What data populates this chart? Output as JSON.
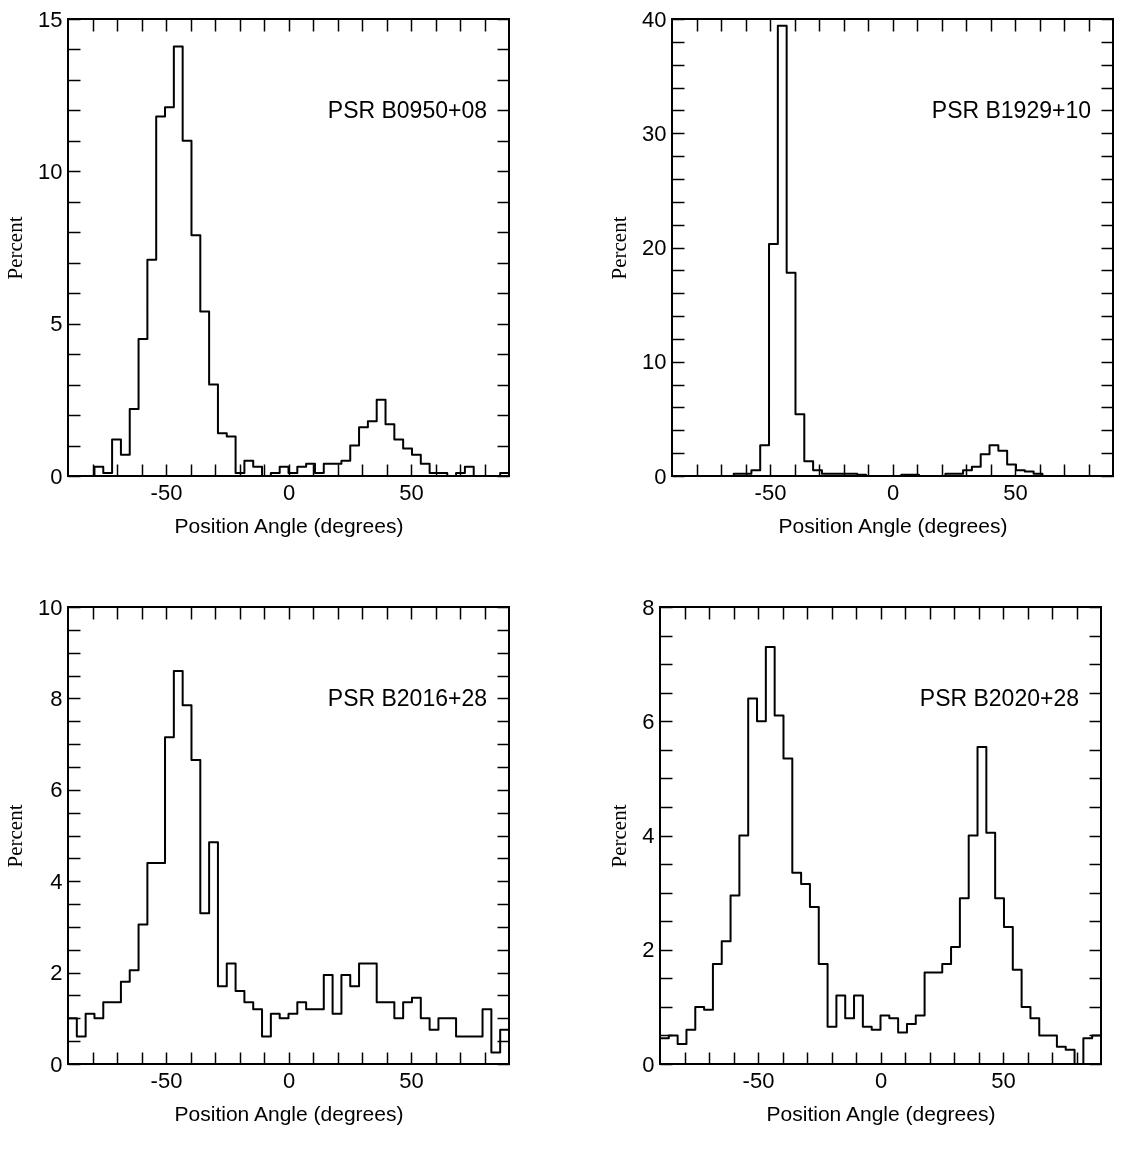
{
  "chart_data": [
    {
      "type": "histogram",
      "xlabel": "Position Angle (degrees)",
      "ylabel": "Percent",
      "annotations": [
        "PSR B0950+08"
      ],
      "color": "#000000",
      "bins": [
        -90,
        -86.4,
        -82.8,
        -79.2,
        -75.6,
        -72,
        -68.4,
        -64.8,
        -61.2,
        -57.6,
        -54,
        -50.4,
        -46.8,
        -43.2,
        -39.6,
        -36,
        -32.4,
        -28.8,
        -25.2,
        -21.6,
        -18,
        -14.4,
        -10.8,
        -7.2,
        -3.6,
        0,
        3.6,
        7.2,
        10.8,
        14.4,
        18,
        21.6,
        25.2,
        28.8,
        32.4,
        36,
        39.6,
        43.2,
        46.8,
        50.4,
        54,
        57.6,
        61.2,
        64.8,
        68.4,
        72,
        75.6,
        79.2,
        82.8,
        86.4,
        90
      ],
      "values": [
        0,
        0,
        0,
        0.3,
        0.1,
        1.2,
        0.7,
        2.2,
        4.5,
        7.1,
        11.8,
        12.1,
        14.1,
        11.0,
        7.9,
        5.4,
        3.0,
        1.4,
        1.3,
        0.1,
        0.5,
        0.3,
        0,
        0.1,
        0.3,
        0.1,
        0.3,
        0.4,
        0.1,
        0.4,
        0.4,
        0.5,
        1.0,
        1.6,
        1.8,
        2.5,
        1.7,
        1.2,
        0.9,
        0.7,
        0.4,
        0.1,
        0.1,
        0,
        0.1,
        0.3,
        0,
        0,
        0,
        0.1
      ],
      "xlim": [
        -90,
        90
      ],
      "xticks": [
        {
          "value": -80,
          "label": null
        },
        {
          "value": -70,
          "label": null
        },
        {
          "value": -60,
          "label": null
        },
        -50,
        {
          "value": -40,
          "label": null
        },
        {
          "value": -30,
          "label": null
        },
        {
          "value": -20,
          "label": null
        },
        {
          "value": -10,
          "label": null
        },
        0,
        {
          "value": 10,
          "label": null
        },
        {
          "value": 20,
          "label": null
        },
        {
          "value": 30,
          "label": null
        },
        {
          "value": 40,
          "label": null
        },
        50,
        {
          "value": 60,
          "label": null
        },
        {
          "value": 70,
          "label": null
        },
        {
          "value": 80,
          "label": null
        }
      ],
      "ylim": [
        0,
        15
      ],
      "yticks": [
        0,
        {
          "value": 1,
          "label": null
        },
        {
          "value": 2,
          "label": null
        },
        {
          "value": 3,
          "label": null
        },
        {
          "value": 4,
          "label": null
        },
        5,
        {
          "value": 6,
          "label": null
        },
        {
          "value": 7,
          "label": null
        },
        {
          "value": 8,
          "label": null
        },
        {
          "value": 9,
          "label": null
        },
        10,
        {
          "value": 11,
          "label": null
        },
        {
          "value": 12,
          "label": null
        },
        {
          "value": 13,
          "label": null
        },
        {
          "value": 14,
          "label": null
        },
        15
      ]
    },
    {
      "type": "histogram",
      "xlabel": "Position Angle (degrees)",
      "ylabel": "Percent",
      "annotations": [
        "PSR B1929+10"
      ],
      "color": "#000000",
      "bins": [
        -90,
        -86.4,
        -82.8,
        -79.2,
        -75.6,
        -72,
        -68.4,
        -64.8,
        -61.2,
        -57.6,
        -54,
        -50.4,
        -46.8,
        -43.2,
        -39.6,
        -36,
        -32.4,
        -28.8,
        -25.2,
        -21.6,
        -18,
        -14.4,
        -10.8,
        -7.2,
        -3.6,
        0,
        3.6,
        7.2,
        10.8,
        14.4,
        18,
        21.6,
        25.2,
        28.8,
        32.4,
        36,
        39.6,
        43.2,
        46.8,
        50.4,
        54,
        57.6,
        61.2,
        64.8,
        68.4,
        72,
        75.6,
        79.2,
        82.8,
        86.4,
        90
      ],
      "values": [
        0,
        0,
        0,
        0,
        0,
        0,
        0,
        0.2,
        0.2,
        0.5,
        2.7,
        20.3,
        39.4,
        17.8,
        5.4,
        1.3,
        0.5,
        0.2,
        0.2,
        0.2,
        0.2,
        0.1,
        0,
        0,
        0,
        0,
        0.1,
        0.1,
        0,
        0,
        0,
        0.2,
        0.2,
        0.5,
        0.8,
        1.9,
        2.7,
        2.2,
        1.0,
        0.5,
        0.4,
        0.2,
        0,
        0,
        0,
        0,
        0,
        0,
        0,
        0
      ],
      "xlim": [
        -90,
        90
      ],
      "xticks": [
        {
          "value": -80,
          "label": null
        },
        {
          "value": -70,
          "label": null
        },
        {
          "value": -60,
          "label": null
        },
        -50,
        {
          "value": -40,
          "label": null
        },
        {
          "value": -30,
          "label": null
        },
        {
          "value": -20,
          "label": null
        },
        {
          "value": -10,
          "label": null
        },
        0,
        {
          "value": 10,
          "label": null
        },
        {
          "value": 20,
          "label": null
        },
        {
          "value": 30,
          "label": null
        },
        {
          "value": 40,
          "label": null
        },
        50,
        {
          "value": 60,
          "label": null
        },
        {
          "value": 70,
          "label": null
        },
        {
          "value": 80,
          "label": null
        }
      ],
      "ylim": [
        0,
        40
      ],
      "yticks": [
        0,
        {
          "value": 2,
          "label": null
        },
        {
          "value": 4,
          "label": null
        },
        {
          "value": 6,
          "label": null
        },
        {
          "value": 8,
          "label": null
        },
        10,
        {
          "value": 12,
          "label": null
        },
        {
          "value": 14,
          "label": null
        },
        {
          "value": 16,
          "label": null
        },
        {
          "value": 18,
          "label": null
        },
        20,
        {
          "value": 22,
          "label": null
        },
        {
          "value": 24,
          "label": null
        },
        {
          "value": 26,
          "label": null
        },
        {
          "value": 28,
          "label": null
        },
        30,
        {
          "value": 32,
          "label": null
        },
        {
          "value": 34,
          "label": null
        },
        {
          "value": 36,
          "label": null
        },
        {
          "value": 38,
          "label": null
        },
        40
      ]
    },
    {
      "type": "histogram",
      "xlabel": "Position Angle (degrees)",
      "ylabel": "Percent",
      "annotations": [
        "PSR B2016+28"
      ],
      "color": "#000000",
      "bins": [
        -90,
        -86.4,
        -82.8,
        -79.2,
        -75.6,
        -72,
        -68.4,
        -64.8,
        -61.2,
        -57.6,
        -54,
        -50.4,
        -46.8,
        -43.2,
        -39.6,
        -36,
        -32.4,
        -28.8,
        -25.2,
        -21.6,
        -18,
        -14.4,
        -10.8,
        -7.2,
        -3.6,
        0,
        3.6,
        7.2,
        10.8,
        14.4,
        18,
        21.6,
        25.2,
        28.8,
        32.4,
        36,
        39.6,
        43.2,
        46.8,
        50.4,
        54,
        57.6,
        61.2,
        64.8,
        68.4,
        72,
        75.6,
        79.2,
        82.8,
        86.4,
        90
      ],
      "values": [
        1.0,
        0.6,
        1.1,
        1.0,
        1.35,
        1.35,
        1.8,
        2.05,
        3.05,
        4.4,
        4.4,
        7.15,
        8.6,
        7.85,
        6.65,
        3.3,
        4.85,
        1.7,
        2.2,
        1.6,
        1.35,
        1.2,
        0.6,
        1.1,
        1.0,
        1.1,
        1.35,
        1.2,
        1.2,
        1.95,
        1.1,
        1.95,
        1.7,
        2.2,
        2.2,
        1.35,
        1.35,
        1.0,
        1.35,
        1.45,
        1.0,
        0.75,
        1.0,
        1.0,
        0.6,
        0.6,
        0.6,
        1.2,
        0.25,
        0.75
      ],
      "xlim": [
        -90,
        90
      ],
      "xticks": [
        {
          "value": -80,
          "label": null
        },
        {
          "value": -70,
          "label": null
        },
        {
          "value": -60,
          "label": null
        },
        -50,
        {
          "value": -40,
          "label": null
        },
        {
          "value": -30,
          "label": null
        },
        {
          "value": -20,
          "label": null
        },
        {
          "value": -10,
          "label": null
        },
        0,
        {
          "value": 10,
          "label": null
        },
        {
          "value": 20,
          "label": null
        },
        {
          "value": 30,
          "label": null
        },
        {
          "value": 40,
          "label": null
        },
        50,
        {
          "value": 60,
          "label": null
        },
        {
          "value": 70,
          "label": null
        },
        {
          "value": 80,
          "label": null
        }
      ],
      "ylim": [
        0,
        10
      ],
      "yticks": [
        0,
        {
          "value": 0.5,
          "label": null
        },
        {
          "value": 1,
          "label": null
        },
        {
          "value": 1.5,
          "label": null
        },
        2,
        {
          "value": 2.5,
          "label": null
        },
        {
          "value": 3,
          "label": null
        },
        {
          "value": 3.5,
          "label": null
        },
        4,
        {
          "value": 4.5,
          "label": null
        },
        {
          "value": 5,
          "label": null
        },
        {
          "value": 5.5,
          "label": null
        },
        6,
        {
          "value": 6.5,
          "label": null
        },
        {
          "value": 7,
          "label": null
        },
        {
          "value": 7.5,
          "label": null
        },
        8,
        {
          "value": 8.5,
          "label": null
        },
        {
          "value": 9,
          "label": null
        },
        {
          "value": 9.5,
          "label": null
        },
        10
      ]
    },
    {
      "type": "histogram",
      "xlabel": "Position Angle (degrees)",
      "ylabel": "Percent",
      "annotations": [
        "PSR B2020+28"
      ],
      "color": "#000000",
      "bins": [
        -90,
        -86.4,
        -82.8,
        -79.2,
        -75.6,
        -72,
        -68.4,
        -64.8,
        -61.2,
        -57.6,
        -54,
        -50.4,
        -46.8,
        -43.2,
        -39.6,
        -36,
        -32.4,
        -28.8,
        -25.2,
        -21.6,
        -18,
        -14.4,
        -10.8,
        -7.2,
        -3.6,
        0,
        3.6,
        7.2,
        10.8,
        14.4,
        18,
        21.6,
        25.2,
        28.8,
        32.4,
        36,
        39.6,
        43.2,
        46.8,
        50.4,
        54,
        57.6,
        61.2,
        64.8,
        68.4,
        72,
        75.6,
        79.2,
        82.8,
        86.4,
        90
      ],
      "values": [
        0.45,
        0.5,
        0.35,
        0.6,
        1.0,
        0.95,
        1.75,
        2.15,
        2.95,
        4.0,
        6.4,
        6.0,
        7.3,
        6.1,
        5.35,
        3.35,
        3.15,
        2.75,
        1.75,
        0.65,
        1.2,
        0.8,
        1.2,
        0.65,
        0.6,
        0.85,
        0.8,
        0.55,
        0.7,
        0.85,
        1.6,
        1.6,
        1.75,
        2.05,
        2.9,
        4.0,
        5.55,
        4.05,
        2.9,
        2.4,
        1.65,
        1.0,
        0.8,
        0.5,
        0.5,
        0.3,
        0.25,
        0,
        0.45,
        0.5
      ],
      "xlim": [
        -90,
        90
      ],
      "xticks": [
        {
          "value": -80,
          "label": null
        },
        {
          "value": -70,
          "label": null
        },
        {
          "value": -60,
          "label": null
        },
        -50,
        {
          "value": -40,
          "label": null
        },
        {
          "value": -30,
          "label": null
        },
        {
          "value": -20,
          "label": null
        },
        {
          "value": -10,
          "label": null
        },
        0,
        {
          "value": 10,
          "label": null
        },
        {
          "value": 20,
          "label": null
        },
        {
          "value": 30,
          "label": null
        },
        {
          "value": 40,
          "label": null
        },
        50,
        {
          "value": 60,
          "label": null
        },
        {
          "value": 70,
          "label": null
        },
        {
          "value": 80,
          "label": null
        }
      ],
      "ylim": [
        0,
        8
      ],
      "yticks": [
        0,
        {
          "value": 0.5,
          "label": null
        },
        {
          "value": 1,
          "label": null
        },
        {
          "value": 1.5,
          "label": null
        },
        2,
        {
          "value": 2.5,
          "label": null
        },
        {
          "value": 3,
          "label": null
        },
        {
          "value": 3.5,
          "label": null
        },
        4,
        {
          "value": 4.5,
          "label": null
        },
        {
          "value": 5,
          "label": null
        },
        {
          "value": 5.5,
          "label": null
        },
        6,
        {
          "value": 6.5,
          "label": null
        },
        {
          "value": 7,
          "label": null
        },
        {
          "value": 7.5,
          "label": null
        },
        8
      ]
    }
  ]
}
